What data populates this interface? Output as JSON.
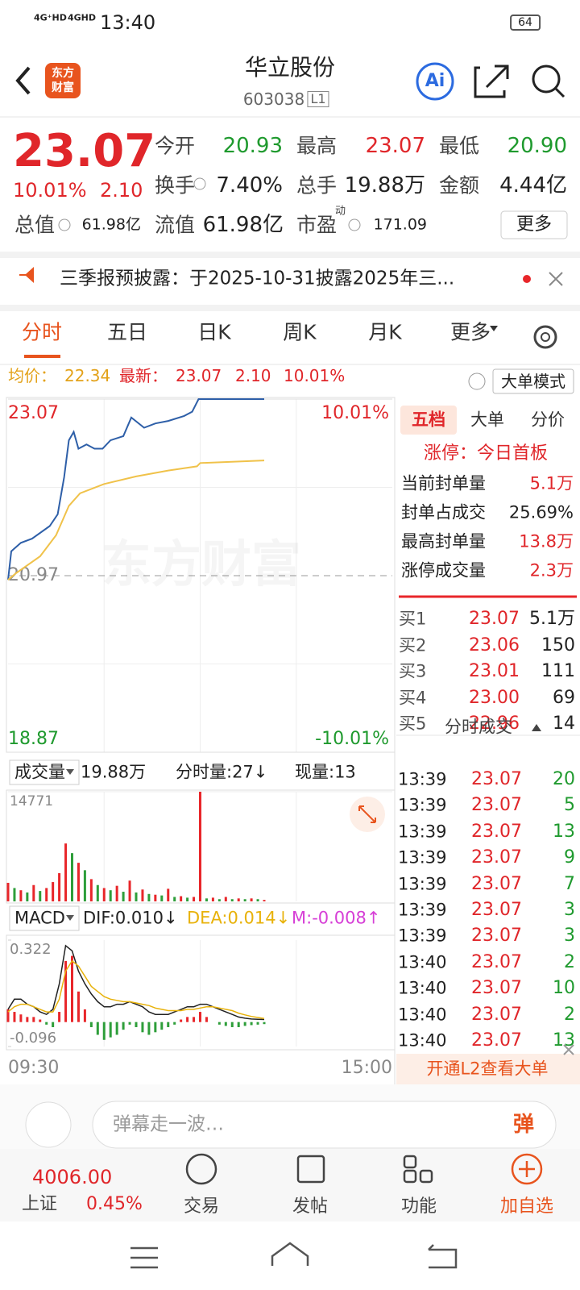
{
  "status_bar": {
    "signal_1": "4G⁺HD",
    "signal_2": "4GHD",
    "time": "13:40",
    "battery": "64"
  },
  "header": {
    "logo": "东方财富",
    "name": "华立股份",
    "code": "603038",
    "level": "L1",
    "ai": "Ai"
  },
  "quote": {
    "price": "23.07",
    "change_pct": "10.01%",
    "change": "2.10",
    "stats": [
      [
        "今开",
        "20.93"
      ],
      [
        "最高",
        "23.07"
      ],
      [
        "最低",
        "20.90"
      ],
      [
        "换手",
        "7.40%"
      ],
      [
        "总手",
        "19.88万"
      ],
      [
        "金额",
        "4.44亿"
      ],
      [
        "总值",
        "61.98亿"
      ],
      [
        "流值",
        "61.98亿"
      ],
      [
        "市盈",
        "171.09"
      ]
    ],
    "pe_tag": "动",
    "more": "更多"
  },
  "notice": "三季报预披露：于2025-10-31披露2025年三...",
  "tabs": [
    "分时",
    "五日",
    "日K",
    "周K",
    "月K",
    "更多"
  ],
  "summary": {
    "avg_label": "均价：",
    "avg": "22.34",
    "latest_label": "最新：",
    "latest": "23.07",
    "change": "2.10",
    "change_pct": "10.01%",
    "mode": "大单模式"
  },
  "watermark": "东方财富",
  "chart_data": [
    {
      "type": "line",
      "xlim": [
        0,
        240
      ],
      "xticks": [
        {
          "value": 0,
          "label": "09:30"
        },
        {
          "value": 240,
          "label": "15:00"
        }
      ],
      "ylim": [
        18.87,
        23.07
      ],
      "yticks": [
        23.07,
        20.97,
        18.87
      ],
      "y2lim": [
        -10.01,
        10.01
      ],
      "y2ticks": [
        {
          "value": 10.01,
          "label": "10.01%"
        },
        {
          "value": -10.01,
          "label": "-10.01%"
        }
      ],
      "series": [
        {
          "color": "#2e5fa8",
          "x": [
            0,
            2,
            8,
            15,
            26,
            31,
            35,
            38,
            41,
            44,
            49,
            54,
            59,
            64,
            72,
            77,
            85,
            92,
            100,
            110,
            115,
            119,
            160
          ],
          "values": [
            20.92,
            21.26,
            21.36,
            21.41,
            21.56,
            21.7,
            22.14,
            22.58,
            22.68,
            22.48,
            22.53,
            22.48,
            22.48,
            22.58,
            22.63,
            22.85,
            22.73,
            22.78,
            22.81,
            22.87,
            22.92,
            23.07,
            23.07
          ]
        },
        {
          "color": "#f0c24a",
          "x": [
            0,
            5,
            20,
            30,
            38,
            45,
            60,
            80,
            100,
            118,
            120,
            160
          ],
          "values": [
            20.92,
            21.0,
            21.2,
            21.45,
            21.8,
            21.95,
            22.06,
            22.15,
            22.22,
            22.27,
            22.31,
            22.34
          ]
        }
      ]
    },
    {
      "type": "bar",
      "xlim": [
        0,
        240
      ],
      "ylim": [
        0,
        14771
      ],
      "yticks": [
        14771
      ],
      "x": [
        0,
        4,
        8,
        12,
        16,
        20,
        24,
        28,
        32,
        36,
        40,
        44,
        48,
        52,
        56,
        60,
        64,
        68,
        72,
        76,
        80,
        84,
        88,
        92,
        96,
        100,
        104,
        108,
        112,
        116,
        120,
        124,
        128,
        132,
        136,
        140,
        144,
        148,
        152,
        156,
        160
      ],
      "values": [
        2500,
        1800,
        1500,
        1200,
        2200,
        1400,
        1800,
        2600,
        3800,
        7800,
        6500,
        5200,
        4200,
        3000,
        2200,
        1800,
        1500,
        2100,
        1300,
        2800,
        1200,
        1600,
        1000,
        900,
        800,
        1700,
        600,
        700,
        500,
        600,
        14771,
        400,
        500,
        300,
        600,
        300,
        400,
        300,
        400,
        300,
        200
      ],
      "colors": [
        "#e8262a",
        "#2e9e3a",
        "#e8262a",
        "#2e9e3a",
        "#e8262a",
        "#2e9e3a",
        "#e8262a",
        "#e8262a",
        "#e8262a",
        "#e8262a",
        "#2e9e3a",
        "#e8262a",
        "#2e9e3a",
        "#e8262a",
        "#2e9e3a",
        "#e8262a",
        "#2e9e3a",
        "#e8262a",
        "#2e9e3a",
        "#e8262a",
        "#2e9e3a",
        "#e8262a",
        "#2e9e3a",
        "#e8262a",
        "#2e9e3a",
        "#e8262a",
        "#2e9e3a",
        "#e8262a",
        "#2e9e3a",
        "#e8262a",
        "#e8262a",
        "#2e9e3a",
        "#e8262a",
        "#2e9e3a",
        "#e8262a",
        "#2e9e3a",
        "#e8262a",
        "#2e9e3a",
        "#e8262a",
        "#2e9e3a",
        "#e8262a"
      ]
    },
    {
      "type": "macd",
      "xlim": [
        0,
        240
      ],
      "ylim": [
        -0.096,
        0.322
      ],
      "yticks": [
        0.322,
        -0.096
      ],
      "pos_color": "#e8262a",
      "neg_color": "#2e9e3a",
      "x": [
        0,
        4,
        8,
        12,
        16,
        20,
        24,
        28,
        32,
        36,
        40,
        44,
        48,
        52,
        56,
        60,
        64,
        68,
        72,
        76,
        80,
        84,
        88,
        92,
        96,
        100,
        104,
        108,
        112,
        116,
        120,
        124,
        128,
        132,
        136,
        140,
        144,
        148,
        152,
        156,
        160
      ],
      "values": [
        0.05,
        0.04,
        0.03,
        0.02,
        0.02,
        0.01,
        -0.01,
        -0.02,
        0.04,
        0.24,
        0.26,
        0.12,
        0.05,
        -0.02,
        -0.05,
        -0.07,
        -0.06,
        -0.05,
        -0.03,
        -0.01,
        -0.02,
        -0.04,
        -0.05,
        -0.04,
        -0.03,
        -0.02,
        -0.01,
        0.01,
        0.02,
        0.02,
        0.04,
        0.02,
        0,
        -0.01,
        -0.015,
        -0.02,
        -0.02,
        -0.015,
        -0.012,
        -0.01,
        -0.008
      ],
      "series": [
        {
          "color": "#222222",
          "values": [
            0.05,
            0.09,
            0.09,
            0.07,
            0.06,
            0.04,
            0.03,
            0.05,
            0.15,
            0.3,
            0.28,
            0.2,
            0.15,
            0.11,
            0.08,
            0.06,
            0.06,
            0.07,
            0.07,
            0.08,
            0.07,
            0.06,
            0.04,
            0.03,
            0.03,
            0.03,
            0.04,
            0.05,
            0.06,
            0.06,
            0.07,
            0.07,
            0.06,
            0.05,
            0.04,
            0.03,
            0.02,
            0.015,
            0.012,
            0.011,
            0.01
          ]
        },
        {
          "color": "#e8b20a",
          "values": [
            0.04,
            0.06,
            0.07,
            0.07,
            0.06,
            0.05,
            0.04,
            0.04,
            0.09,
            0.2,
            0.24,
            0.22,
            0.18,
            0.14,
            0.12,
            0.1,
            0.09,
            0.085,
            0.08,
            0.08,
            0.075,
            0.07,
            0.065,
            0.055,
            0.05,
            0.045,
            0.045,
            0.045,
            0.05,
            0.05,
            0.055,
            0.06,
            0.06,
            0.055,
            0.05,
            0.045,
            0.035,
            0.028,
            0.022,
            0.018,
            0.014
          ]
        }
      ]
    }
  ],
  "volume_header": {
    "label": "成交量",
    "total": "19.88万",
    "minute": "分时量:27↓",
    "current": "现量:13"
  },
  "macd_header": {
    "label": "MACD",
    "dif": "DIF:0.010↓",
    "dea": "DEA:0.014↓",
    "m": "M:-0.008↑"
  },
  "side": {
    "tabs": [
      "五档",
      "大单",
      "分价"
    ],
    "limit_up": "涨停：今日首板",
    "stats": [
      [
        "当前封单量",
        "5.1万"
      ],
      [
        "封单占成交",
        "25.69%"
      ],
      [
        "最高封单量",
        "13.8万"
      ],
      [
        "涨停成交量",
        "2.3万"
      ]
    ],
    "bids": [
      [
        "买1",
        "23.07",
        "5.1万"
      ],
      [
        "买2",
        "23.06",
        "150"
      ],
      [
        "买3",
        "23.01",
        "111"
      ],
      [
        "买4",
        "23.00",
        "69"
      ],
      [
        "买5",
        "22.96",
        "14"
      ]
    ],
    "trades_title": "分时成交",
    "trades": [
      [
        "13:39",
        "23.07",
        "20"
      ],
      [
        "13:39",
        "23.07",
        "5"
      ],
      [
        "13:39",
        "23.07",
        "13"
      ],
      [
        "13:39",
        "23.07",
        "9"
      ],
      [
        "13:39",
        "23.07",
        "7"
      ],
      [
        "13:39",
        "23.07",
        "3"
      ],
      [
        "13:39",
        "23.07",
        "3"
      ],
      [
        "13:40",
        "23.07",
        "2"
      ],
      [
        "13:40",
        "23.07",
        "10"
      ],
      [
        "13:40",
        "23.07",
        "2"
      ],
      [
        "13:40",
        "23.07",
        "13"
      ]
    ],
    "promo": "开通L2查看大单"
  },
  "bottom": {
    "comment": "弹幕走一波…",
    "danmu": "弹",
    "index_value": "4006.00",
    "index_name": "上证",
    "index_pct": "0.45%",
    "nav": [
      "交易",
      "发帖",
      "功能",
      "加自选"
    ]
  }
}
